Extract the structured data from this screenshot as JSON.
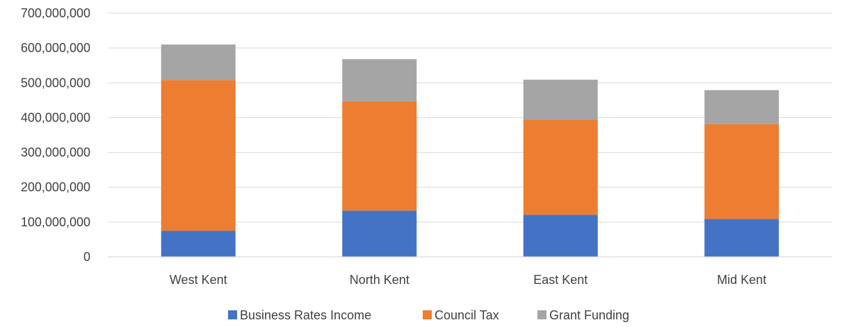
{
  "chart_data": {
    "type": "bar",
    "stacked": true,
    "title": "",
    "xlabel": "",
    "ylabel": "",
    "categories": [
      "West Kent",
      "North Kent",
      "East Kent",
      "Mid Kent"
    ],
    "series": [
      {
        "name": "Business Rates Income",
        "color": "#4472c4",
        "values": [
          75000000,
          133000000,
          121000000,
          109000000
        ]
      },
      {
        "name": "Council Tax",
        "color": "#ed7d31",
        "values": [
          433000000,
          314000000,
          273000000,
          272000000
        ]
      },
      {
        "name": "Grant Funding",
        "color": "#a5a5a5",
        "values": [
          102000000,
          121000000,
          115000000,
          98000000
        ]
      }
    ],
    "ylim": [
      0,
      700000000
    ],
    "yticks": [
      0,
      100000000,
      200000000,
      300000000,
      400000000,
      500000000,
      600000000,
      700000000
    ],
    "ytick_labels": [
      "0",
      "100,000,000",
      "200,000,000",
      "300,000,000",
      "400,000,000",
      "500,000,000",
      "600,000,000",
      "700,000,000"
    ],
    "grid": true,
    "legend_position": "bottom"
  }
}
